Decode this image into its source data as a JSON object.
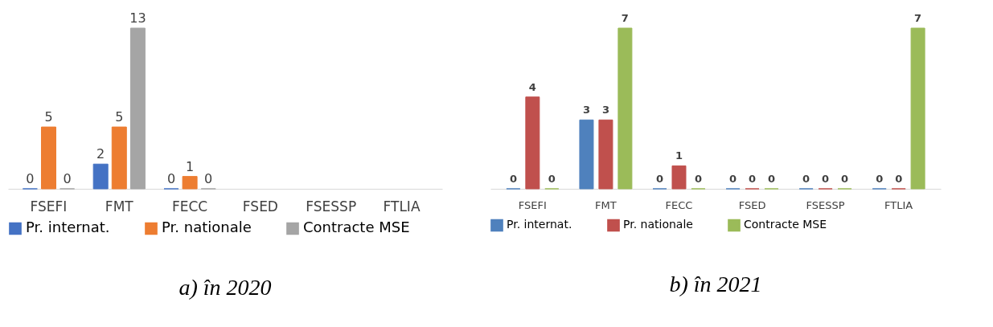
{
  "chart_data": [
    {
      "type": "bar",
      "title": "a)   în 2020",
      "categories": [
        "FSEFI",
        "FMT",
        "FECC",
        "FSED",
        "FSESSP",
        "FTLIA"
      ],
      "series": [
        {
          "name": "Pr. internat.",
          "color": "#4472c4",
          "values": [
            0,
            2,
            0,
            null,
            null,
            null
          ]
        },
        {
          "name": "Pr. nationale",
          "color": "#ed7d31",
          "values": [
            5,
            5,
            1,
            null,
            null,
            null
          ]
        },
        {
          "name": "Contracte MSE",
          "color": "#a5a5a5",
          "values": [
            0,
            13,
            0,
            null,
            null,
            null
          ]
        }
      ],
      "tick_labels": "x",
      "data_labels": true,
      "legend": "bottom"
    },
    {
      "type": "bar",
      "title": "b)  în 2021",
      "categories": [
        "FSEFI",
        "FMT",
        "FECC",
        "FSED",
        "FSESSP",
        "FTLIA"
      ],
      "series": [
        {
          "name": "Pr. internat.",
          "color": "#4f81bd",
          "values": [
            0,
            3,
            0,
            0,
            0,
            0
          ]
        },
        {
          "name": "Pr. nationale",
          "color": "#c0504d",
          "values": [
            4,
            3,
            1,
            0,
            0,
            0
          ]
        },
        {
          "name": "Contracte MSE",
          "color": "#9bbb59",
          "values": [
            0,
            7,
            0,
            0,
            0,
            7
          ]
        }
      ],
      "tick_labels": "x",
      "data_labels": true,
      "legend": "bottom"
    }
  ]
}
